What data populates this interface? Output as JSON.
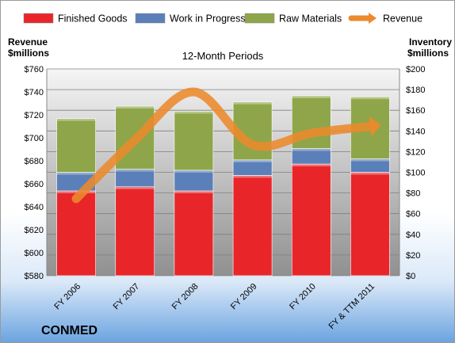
{
  "chart_data": {
    "type": "bar",
    "subtitle": "12-Month Periods",
    "company": "CONMED",
    "categories": [
      "FY 2006",
      "FY 2007",
      "FY 2008",
      "FY 2009",
      "FY 2010",
      "FY & TTM 2011"
    ],
    "series": [
      {
        "name": "Finished Goods",
        "axis": "right",
        "stacked": true,
        "color": "#e8262a",
        "values": [
          82,
          86,
          82,
          97,
          108,
          100
        ]
      },
      {
        "name": "Work in Progress",
        "axis": "right",
        "stacked": true,
        "color": "#5b7fb8",
        "values": [
          18,
          17,
          20,
          15,
          15,
          13
        ]
      },
      {
        "name": "Raw Materials",
        "axis": "right",
        "stacked": true,
        "color": "#8ea649",
        "values": [
          52,
          61,
          57,
          56,
          51,
          60
        ]
      },
      {
        "name": "Revenue",
        "axis": "left",
        "type": "line",
        "color": "#ec8a2c",
        "values": [
          647,
          698,
          740,
          694,
          704,
          710
        ]
      }
    ],
    "left_axis": {
      "title_lines": [
        "Revenue",
        "$millions"
      ],
      "range": [
        580,
        760
      ],
      "ticks": [
        "$580",
        "$600",
        "$620",
        "$640",
        "$660",
        "$680",
        "$700",
        "$720",
        "$740",
        "$760"
      ]
    },
    "right_axis": {
      "title_lines": [
        "Inventory",
        "$millions"
      ],
      "range": [
        0,
        200
      ],
      "ticks": [
        "$0",
        "$20",
        "$40",
        "$60",
        "$80",
        "$100",
        "$120",
        "$140",
        "$160",
        "$180",
        "$200"
      ]
    },
    "legend_position": "top",
    "grid": true
  }
}
